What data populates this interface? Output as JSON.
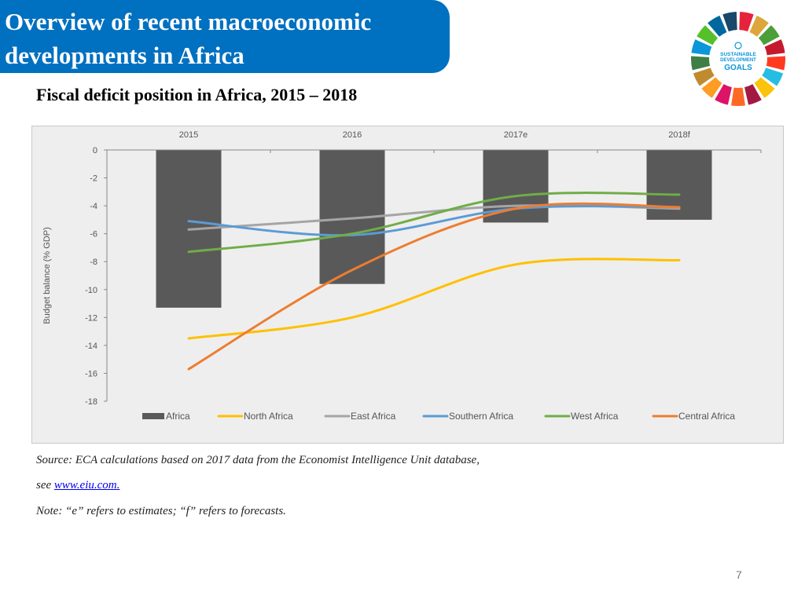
{
  "header": {
    "title": "Overview of recent macroeconomic developments in Africa",
    "subtitle": "Fiscal deficit position in Africa, 2015 – 2018"
  },
  "logo": {
    "text_lines": [
      "SUSTAINABLE",
      "DEVELOPMENT",
      "GOALS"
    ],
    "colors": [
      "#e5243b",
      "#dda63a",
      "#4c9f38",
      "#c5192d",
      "#ff3a21",
      "#26bde2",
      "#fcc30b",
      "#a21942",
      "#fd6925",
      "#dd1367",
      "#fd9d24",
      "#bf8b2e",
      "#3f7e44",
      "#0a97d9",
      "#56c02b",
      "#00689d",
      "#19486a"
    ]
  },
  "chart_data": {
    "type": "bar",
    "categories": [
      "2015",
      "2016",
      "2017e",
      "2018f"
    ],
    "ylabel": "Budget balance (% GDP)",
    "ylim": [
      -18,
      0
    ],
    "yticks": [
      "0",
      "-2",
      "-4",
      "-6",
      "-8",
      "-10",
      "-12",
      "-14",
      "-16",
      "-18"
    ],
    "legend_position": "bottom",
    "series": [
      {
        "name": "Africa",
        "kind": "bar",
        "color": "#595959",
        "values": [
          -11.3,
          -9.6,
          -5.2,
          -5.0
        ]
      },
      {
        "name": "North Africa",
        "kind": "line",
        "color": "#ffc000",
        "values": [
          -13.5,
          -12.0,
          -8.2,
          -7.9
        ]
      },
      {
        "name": "East Africa",
        "kind": "line",
        "color": "#a5a5a5",
        "values": [
          -5.7,
          -4.9,
          -4.0,
          -4.2
        ]
      },
      {
        "name": "Southern Africa",
        "kind": "line",
        "color": "#5b9bd5",
        "values": [
          -5.1,
          -6.1,
          -4.2,
          -4.1
        ]
      },
      {
        "name": "West  Africa",
        "kind": "line",
        "color": "#70ad47",
        "values": [
          -7.3,
          -6.0,
          -3.3,
          -3.2
        ]
      },
      {
        "name": "Central Africa",
        "kind": "line",
        "color": "#ed7d31",
        "values": [
          -15.7,
          -8.6,
          -4.2,
          -4.1
        ]
      }
    ]
  },
  "notes": {
    "source_text": "Source: ECA calculations based on 2017 data from the Economist Intelligence Unit database,",
    "see_label": "see ",
    "link_text": "www.eiu.com.",
    "note_text": "Note: “e” refers to estimates; “f” refers to forecasts."
  },
  "page_number": "7"
}
